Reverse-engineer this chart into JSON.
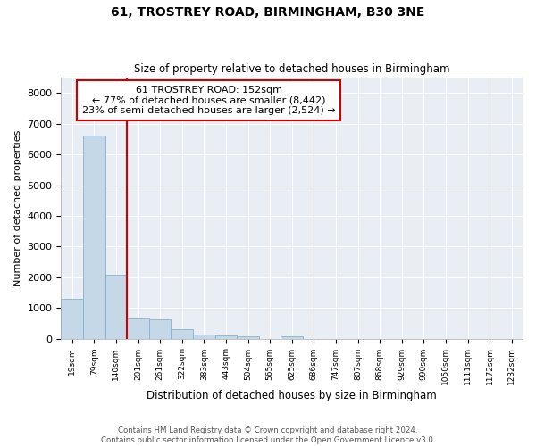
{
  "title1": "61, TROSTREY ROAD, BIRMINGHAM, B30 3NE",
  "title2": "Size of property relative to detached houses in Birmingham",
  "xlabel": "Distribution of detached houses by size in Birmingham",
  "ylabel": "Number of detached properties",
  "footnote1": "Contains HM Land Registry data © Crown copyright and database right 2024.",
  "footnote2": "Contains public sector information licensed under the Open Government Licence v3.0.",
  "annotation_title": "61 TROSTREY ROAD: 152sqm",
  "annotation_line1": "← 77% of detached houses are smaller (8,442)",
  "annotation_line2": "23% of semi-detached houses are larger (2,524) →",
  "bar_color": "#c5d8e8",
  "bar_edge_color": "#8ab0cc",
  "vline_color": "#cc0000",
  "annotation_box_edge": "#cc0000",
  "background_color": "#e8eef4",
  "categories": [
    "19sqm",
    "79sqm",
    "140sqm",
    "201sqm",
    "261sqm",
    "322sqm",
    "383sqm",
    "443sqm",
    "504sqm",
    "565sqm",
    "625sqm",
    "686sqm",
    "747sqm",
    "807sqm",
    "868sqm",
    "929sqm",
    "990sqm",
    "1050sqm",
    "1111sqm",
    "1172sqm",
    "1232sqm"
  ],
  "values": [
    1300,
    6600,
    2090,
    650,
    620,
    300,
    140,
    110,
    80,
    0,
    80,
    0,
    0,
    0,
    0,
    0,
    0,
    0,
    0,
    0,
    0
  ],
  "vline_position": 2.5,
  "ylim": [
    0,
    8500
  ],
  "yticks": [
    0,
    1000,
    2000,
    3000,
    4000,
    5000,
    6000,
    7000,
    8000
  ]
}
